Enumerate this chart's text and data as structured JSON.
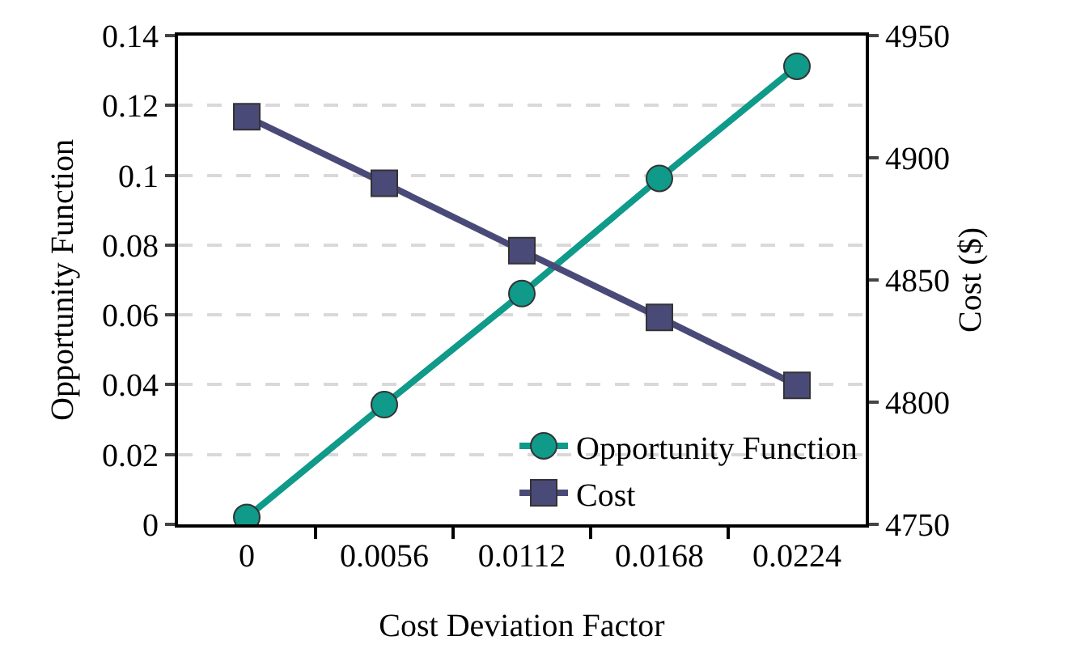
{
  "chart_data": {
    "type": "line",
    "xlabel": "Cost Deviation Factor",
    "ylabel": "Opportunity Function",
    "y2label": "Cost ($)",
    "categories": [
      "0",
      "0.0056",
      "0.0112",
      "0.0168",
      "0.0224"
    ],
    "series": [
      {
        "name": "Opportunity Function",
        "color": "#0f9a8a",
        "marker": "circle",
        "values": [
          0.002,
          0.0343,
          0.0661,
          0.0991,
          0.1312
        ]
      },
      {
        "name": "Cost",
        "color": "#4a4a78",
        "marker": "square",
        "axis": "y2",
        "values": [
          4916.8,
          4889.6,
          4862,
          4834.7,
          4806.9
        ]
      }
    ],
    "ylim": [
      0,
      0.14
    ],
    "yticks": [
      0,
      0.02,
      0.04,
      0.06,
      0.08,
      0.1,
      0.12,
      0.14
    ],
    "y2lim": [
      4750,
      4950
    ],
    "y2ticks": [
      4750,
      4800,
      4850,
      4900,
      4950
    ],
    "grid": "y",
    "legend": "bottom right",
    "line_style": "solid"
  }
}
